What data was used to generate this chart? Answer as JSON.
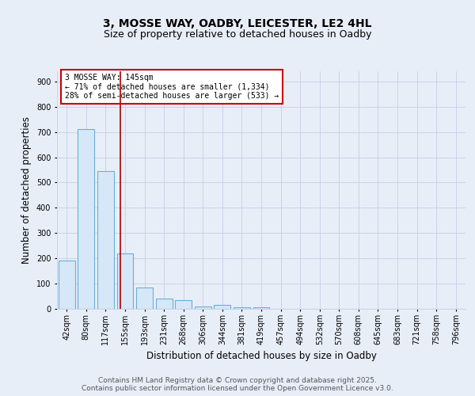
{
  "title_line1": "3, MOSSE WAY, OADBY, LEICESTER, LE2 4HL",
  "title_line2": "Size of property relative to detached houses in Oadby",
  "xlabel": "Distribution of detached houses by size in Oadby",
  "ylabel": "Number of detached properties",
  "bar_labels": [
    "42sqm",
    "80sqm",
    "117sqm",
    "155sqm",
    "193sqm",
    "231sqm",
    "268sqm",
    "306sqm",
    "344sqm",
    "381sqm",
    "419sqm",
    "457sqm",
    "494sqm",
    "532sqm",
    "570sqm",
    "608sqm",
    "645sqm",
    "683sqm",
    "721sqm",
    "758sqm",
    "796sqm"
  ],
  "bar_values": [
    190,
    710,
    545,
    220,
    85,
    40,
    35,
    10,
    15,
    5,
    5,
    0,
    0,
    0,
    0,
    0,
    0,
    0,
    0,
    0,
    0
  ],
  "bar_color": "#d6e8f7",
  "bar_edgecolor": "#6baed6",
  "bar_linewidth": 0.8,
  "grid_color": "#c8d4e8",
  "background_color": "#e8eef8",
  "axes_background": "#e8eef8",
  "red_line_color": "#aa0000",
  "annotation_text": "3 MOSSE WAY: 145sqm\n← 71% of detached houses are smaller (1,334)\n28% of semi-detached houses are larger (533) →",
  "annotation_box_color": "#ffffff",
  "annotation_box_edgecolor": "#cc0000",
  "ylim": [
    0,
    940
  ],
  "yticks": [
    0,
    100,
    200,
    300,
    400,
    500,
    600,
    700,
    800,
    900
  ],
  "footer_line1": "Contains HM Land Registry data © Crown copyright and database right 2025.",
  "footer_line2": "Contains public sector information licensed under the Open Government Licence v3.0.",
  "title_fontsize": 10,
  "subtitle_fontsize": 9,
  "axis_label_fontsize": 8.5,
  "tick_fontsize": 7,
  "annotation_fontsize": 7,
  "footer_fontsize": 6.5
}
